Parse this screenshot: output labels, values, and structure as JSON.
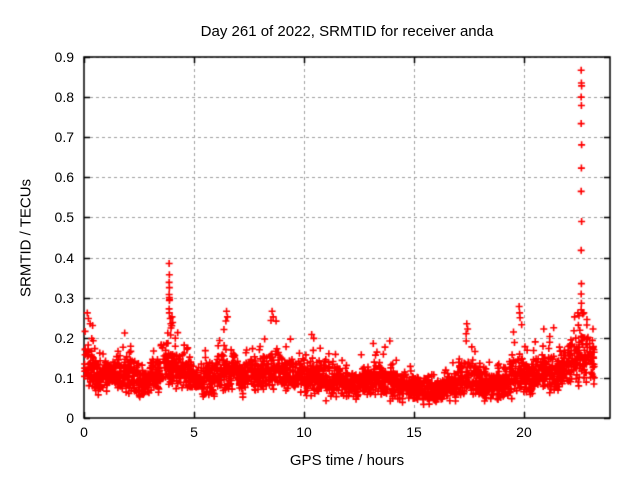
{
  "chart_data": {
    "type": "scatter",
    "title": "Day 261 of 2022, SRMTID for receiver anda",
    "xlabel": "GPS time / hours",
    "ylabel": "SRMTID / TECUs",
    "xlim": [
      0,
      23.91
    ],
    "ylim": [
      0,
      0.9
    ],
    "xticks": [
      "0",
      "5",
      "10",
      "15",
      "20"
    ],
    "yticks": [
      "0",
      "0.1",
      "0.2",
      "0.3",
      "0.4",
      "0.5",
      "0.6",
      "0.7",
      "0.8",
      "0.9"
    ],
    "grid": true,
    "grid_style": "dashed",
    "legend": "none",
    "marker": "plus",
    "marker_color": "#ff0000",
    "grid_color": "#9f9f9f",
    "border_color": "#000000",
    "background_color": "#ffffff",
    "text_color": "#000000",
    "seed": 2022261,
    "band_segments_fields": [
      "x0",
      "x1",
      "n",
      "base",
      "spread",
      "peak"
    ],
    "band_segments": [
      [
        0.02,
        0.5,
        58,
        0.13,
        0.07,
        0.24
      ],
      [
        0.5,
        1.0,
        60,
        0.1,
        0.045,
        0.17
      ],
      [
        1.0,
        1.5,
        60,
        0.1,
        0.045,
        0.17
      ],
      [
        1.5,
        2.0,
        60,
        0.11,
        0.05,
        0.21
      ],
      [
        2.0,
        2.5,
        60,
        0.1,
        0.05,
        0.19
      ],
      [
        2.5,
        3.0,
        60,
        0.09,
        0.04,
        0.15
      ],
      [
        3.0,
        3.5,
        60,
        0.11,
        0.05,
        0.2
      ],
      [
        3.5,
        4.0,
        60,
        0.13,
        0.06,
        0.24
      ],
      [
        4.0,
        4.5,
        60,
        0.12,
        0.055,
        0.22
      ],
      [
        4.5,
        5.0,
        60,
        0.11,
        0.05,
        0.2
      ],
      [
        5.0,
        5.5,
        60,
        0.09,
        0.04,
        0.16
      ],
      [
        5.5,
        6.0,
        60,
        0.1,
        0.05,
        0.18
      ],
      [
        6.0,
        6.5,
        60,
        0.12,
        0.055,
        0.23
      ],
      [
        6.5,
        7.0,
        60,
        0.12,
        0.055,
        0.25
      ],
      [
        7.0,
        7.5,
        60,
        0.1,
        0.05,
        0.18
      ],
      [
        7.5,
        8.0,
        60,
        0.11,
        0.05,
        0.2
      ],
      [
        8.0,
        8.5,
        60,
        0.11,
        0.05,
        0.21
      ],
      [
        8.5,
        9.0,
        60,
        0.12,
        0.055,
        0.25
      ],
      [
        9.0,
        9.5,
        60,
        0.11,
        0.05,
        0.21
      ],
      [
        9.5,
        10.0,
        60,
        0.1,
        0.05,
        0.19
      ],
      [
        10.0,
        10.5,
        60,
        0.1,
        0.05,
        0.2
      ],
      [
        10.5,
        11.0,
        60,
        0.1,
        0.05,
        0.18
      ],
      [
        11.0,
        11.5,
        60,
        0.09,
        0.05,
        0.17
      ],
      [
        11.5,
        12.0,
        60,
        0.09,
        0.045,
        0.16
      ],
      [
        12.0,
        12.5,
        60,
        0.08,
        0.04,
        0.14
      ],
      [
        12.5,
        13.0,
        60,
        0.09,
        0.04,
        0.16
      ],
      [
        13.0,
        13.5,
        60,
        0.1,
        0.05,
        0.19
      ],
      [
        13.5,
        14.0,
        60,
        0.09,
        0.05,
        0.18
      ],
      [
        14.0,
        14.5,
        60,
        0.08,
        0.045,
        0.15
      ],
      [
        14.5,
        15.0,
        60,
        0.08,
        0.04,
        0.14
      ],
      [
        15.0,
        15.5,
        60,
        0.07,
        0.04,
        0.12
      ],
      [
        15.5,
        16.0,
        60,
        0.07,
        0.04,
        0.12
      ],
      [
        16.0,
        16.5,
        60,
        0.07,
        0.04,
        0.13
      ],
      [
        16.5,
        17.0,
        60,
        0.08,
        0.04,
        0.15
      ],
      [
        17.0,
        17.5,
        60,
        0.1,
        0.05,
        0.22
      ],
      [
        17.5,
        18.0,
        60,
        0.1,
        0.05,
        0.19
      ],
      [
        18.0,
        18.5,
        60,
        0.08,
        0.045,
        0.14
      ],
      [
        18.5,
        19.0,
        60,
        0.08,
        0.04,
        0.14
      ],
      [
        19.0,
        19.5,
        60,
        0.09,
        0.045,
        0.16
      ],
      [
        19.5,
        20.0,
        60,
        0.11,
        0.055,
        0.26
      ],
      [
        20.0,
        20.5,
        60,
        0.1,
        0.05,
        0.21
      ],
      [
        20.5,
        21.0,
        60,
        0.11,
        0.05,
        0.19
      ],
      [
        21.0,
        21.5,
        60,
        0.11,
        0.05,
        0.22
      ],
      [
        21.5,
        22.0,
        60,
        0.12,
        0.055,
        0.22
      ],
      [
        22.0,
        22.5,
        60,
        0.14,
        0.065,
        0.25
      ],
      [
        22.5,
        23.0,
        60,
        0.15,
        0.07,
        0.26
      ],
      [
        23.0,
        23.2,
        24,
        0.14,
        0.06,
        0.24
      ]
    ],
    "spike_points": [
      [
        0.15,
        0.262
      ],
      [
        0.2,
        0.248
      ],
      [
        0.28,
        0.235
      ],
      [
        1.85,
        0.212
      ],
      [
        3.87,
        0.385
      ],
      [
        3.88,
        0.357
      ],
      [
        3.87,
        0.338
      ],
      [
        3.88,
        0.325
      ],
      [
        3.87,
        0.308
      ],
      [
        3.88,
        0.3
      ],
      [
        3.89,
        0.295
      ],
      [
        3.88,
        0.293
      ],
      [
        3.87,
        0.272
      ],
      [
        3.88,
        0.262
      ],
      [
        3.92,
        0.248
      ],
      [
        3.95,
        0.235
      ],
      [
        4.0,
        0.252
      ],
      [
        4.03,
        0.238
      ],
      [
        6.48,
        0.266
      ],
      [
        6.52,
        0.252
      ],
      [
        6.45,
        0.242
      ],
      [
        8.55,
        0.266
      ],
      [
        8.6,
        0.252
      ],
      [
        8.5,
        0.243
      ],
      [
        10.35,
        0.208
      ],
      [
        13.9,
        0.192
      ],
      [
        17.4,
        0.235
      ],
      [
        17.44,
        0.222
      ],
      [
        17.37,
        0.21
      ],
      [
        19.78,
        0.278
      ],
      [
        19.8,
        0.262
      ],
      [
        19.82,
        0.25
      ],
      [
        20.9,
        0.222
      ],
      [
        21.35,
        0.225
      ],
      [
        22.3,
        0.252
      ],
      [
        22.45,
        0.262
      ],
      [
        22.5,
        0.255
      ],
      [
        22.72,
        0.262
      ],
      [
        22.6,
        0.867
      ],
      [
        22.61,
        0.835
      ],
      [
        22.62,
        0.828
      ],
      [
        22.6,
        0.8
      ],
      [
        22.61,
        0.779
      ],
      [
        22.6,
        0.734
      ],
      [
        22.62,
        0.681
      ],
      [
        22.61,
        0.623
      ],
      [
        22.6,
        0.565
      ],
      [
        22.62,
        0.49
      ],
      [
        22.6,
        0.418
      ],
      [
        22.61,
        0.335
      ],
      [
        22.6,
        0.309
      ],
      [
        22.61,
        0.286
      ],
      [
        22.6,
        0.27
      ]
    ]
  }
}
